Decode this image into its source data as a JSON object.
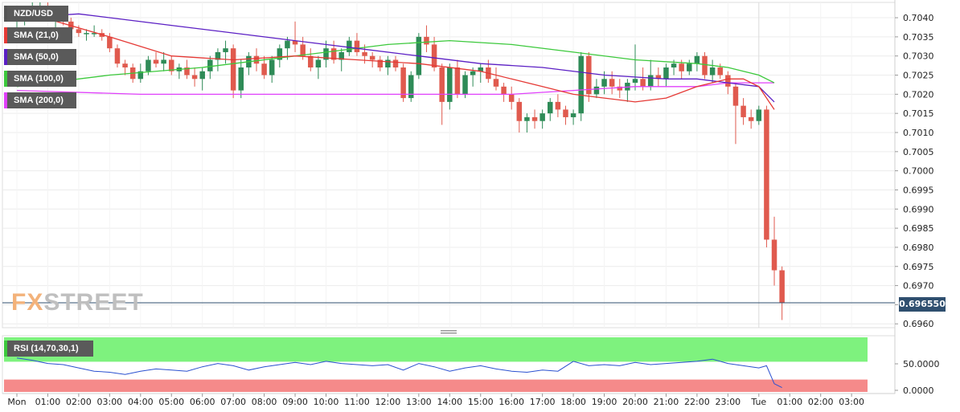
{
  "pair": "NZD/USD",
  "last_price": "0.696550",
  "legend": [
    {
      "label": "SMA (21,0)",
      "color": "#e53935"
    },
    {
      "label": "SMA (50,0)",
      "color": "#5b1fc4"
    },
    {
      "label": "SMA (100,0)",
      "color": "#3cc93c"
    },
    {
      "label": "SMA (200,0)",
      "color": "#e040fb"
    }
  ],
  "rsi_label": "RSI (14,70,30,1)",
  "watermark": {
    "prefix": "FX",
    "rest": "STREET"
  },
  "colors": {
    "up": "#2e8b57",
    "down": "#e05a4e",
    "rsi_line": "#2a50d0",
    "rsi_overbought": "#7ef27e",
    "rsi_oversold": "#f58a8a",
    "price_line": "#2f4f6f"
  },
  "chart_data": {
    "type": "candlestick",
    "title": "NZD/USD",
    "y_ticks": [
      "0.7040",
      "0.7035",
      "0.7030",
      "0.7025",
      "0.7020",
      "0.7015",
      "0.7010",
      "0.7005",
      "0.7000",
      "0.6995",
      "0.6990",
      "0.6985",
      "0.6980",
      "0.6975",
      "0.6970",
      "0.6965",
      "0.6960"
    ],
    "ylim": [
      0.6959,
      0.7044
    ],
    "x_ticks": [
      "Mon",
      "01:00",
      "02:00",
      "03:00",
      "04:00",
      "05:00",
      "06:00",
      "07:00",
      "08:00",
      "09:00",
      "10:00",
      "11:00",
      "12:00",
      "13:00",
      "14:00",
      "15:00",
      "16:00",
      "17:00",
      "18:00",
      "19:00",
      "20:00",
      "21:00",
      "22:00",
      "23:00",
      "Tue",
      "01:00",
      "02:00",
      "03:00"
    ],
    "x_unit": "hours since Mon 00:00",
    "candles": [
      [
        0.0,
        0.7039,
        0.7042,
        0.7036,
        0.704
      ],
      [
        0.25,
        0.704,
        0.7043,
        0.7038,
        0.7041
      ],
      [
        0.5,
        0.7041,
        0.7044,
        0.7039,
        0.7042
      ],
      [
        0.75,
        0.7042,
        0.7044,
        0.704,
        0.7043
      ],
      [
        1.0,
        0.7043,
        0.7044,
        0.7039,
        0.704
      ],
      [
        1.25,
        0.704,
        0.7042,
        0.7037,
        0.7041
      ],
      [
        1.5,
        0.7041,
        0.7043,
        0.7038,
        0.7039
      ],
      [
        1.75,
        0.7039,
        0.704,
        0.7036,
        0.7037
      ],
      [
        2.0,
        0.7037,
        0.7038,
        0.7035,
        0.7036
      ],
      [
        2.25,
        0.7036,
        0.7037,
        0.7034,
        0.7036
      ],
      [
        2.5,
        0.7036,
        0.7038,
        0.7035,
        0.7036
      ],
      [
        2.75,
        0.7036,
        0.7037,
        0.7034,
        0.7035
      ],
      [
        3.0,
        0.7035,
        0.7036,
        0.7031,
        0.7032
      ],
      [
        3.25,
        0.7032,
        0.7033,
        0.7027,
        0.7028
      ],
      [
        3.5,
        0.7028,
        0.7029,
        0.7025,
        0.7027
      ],
      [
        3.75,
        0.7027,
        0.7028,
        0.7023,
        0.7024
      ],
      [
        4.0,
        0.7024,
        0.7028,
        0.7023,
        0.7026
      ],
      [
        4.25,
        0.7026,
        0.703,
        0.7025,
        0.7029
      ],
      [
        4.5,
        0.7029,
        0.7031,
        0.7027,
        0.7028
      ],
      [
        4.75,
        0.7028,
        0.7031,
        0.7026,
        0.7029
      ],
      [
        5.0,
        0.7029,
        0.703,
        0.7025,
        0.7026
      ],
      [
        5.25,
        0.7026,
        0.7028,
        0.7024,
        0.7027
      ],
      [
        5.5,
        0.7027,
        0.7029,
        0.7024,
        0.7025
      ],
      [
        5.75,
        0.7025,
        0.7027,
        0.7022,
        0.7024
      ],
      [
        6.0,
        0.7024,
        0.7027,
        0.7021,
        0.7026
      ],
      [
        6.25,
        0.7026,
        0.703,
        0.7024,
        0.7029
      ],
      [
        6.5,
        0.7029,
        0.7032,
        0.7026,
        0.7031
      ],
      [
        6.75,
        0.7031,
        0.7034,
        0.7028,
        0.7032
      ],
      [
        7.0,
        0.7032,
        0.7033,
        0.7019,
        0.7021
      ],
      [
        7.25,
        0.7021,
        0.7029,
        0.7019,
        0.7027
      ],
      [
        7.5,
        0.7027,
        0.7031,
        0.7025,
        0.703
      ],
      [
        7.75,
        0.703,
        0.7032,
        0.7026,
        0.7028
      ],
      [
        8.0,
        0.7028,
        0.703,
        0.7024,
        0.7025
      ],
      [
        8.25,
        0.7025,
        0.703,
        0.7023,
        0.7029
      ],
      [
        8.5,
        0.7029,
        0.7033,
        0.7027,
        0.7032
      ],
      [
        8.75,
        0.7032,
        0.7035,
        0.7029,
        0.7034
      ],
      [
        9.0,
        0.7034,
        0.7039,
        0.7031,
        0.7033
      ],
      [
        9.25,
        0.7033,
        0.7035,
        0.7029,
        0.703
      ],
      [
        9.5,
        0.703,
        0.7032,
        0.7026,
        0.7027
      ],
      [
        9.75,
        0.7027,
        0.703,
        0.7024,
        0.7029
      ],
      [
        10.0,
        0.7029,
        0.7034,
        0.7027,
        0.7032
      ],
      [
        10.25,
        0.7032,
        0.7034,
        0.7028,
        0.7029
      ],
      [
        10.5,
        0.7029,
        0.7032,
        0.7026,
        0.7031
      ],
      [
        10.75,
        0.7031,
        0.7035,
        0.703,
        0.7034
      ],
      [
        11.0,
        0.7034,
        0.7036,
        0.703,
        0.7031
      ],
      [
        11.25,
        0.7031,
        0.7033,
        0.7028,
        0.703
      ],
      [
        11.5,
        0.703,
        0.7031,
        0.7027,
        0.7029
      ],
      [
        11.75,
        0.7029,
        0.703,
        0.7026,
        0.7027
      ],
      [
        12.0,
        0.7027,
        0.703,
        0.7025,
        0.7029
      ],
      [
        12.25,
        0.7029,
        0.703,
        0.7026,
        0.7027
      ],
      [
        12.5,
        0.7027,
        0.7028,
        0.7018,
        0.7019
      ],
      [
        12.75,
        0.7019,
        0.7026,
        0.7018,
        0.7025
      ],
      [
        13.0,
        0.7025,
        0.7036,
        0.7024,
        0.7035
      ],
      [
        13.25,
        0.7035,
        0.7038,
        0.7031,
        0.7033
      ],
      [
        13.5,
        0.7033,
        0.7035,
        0.7026,
        0.7027
      ],
      [
        13.75,
        0.7027,
        0.7028,
        0.7012,
        0.7018
      ],
      [
        14.0,
        0.7018,
        0.7028,
        0.7016,
        0.7027
      ],
      [
        14.25,
        0.7027,
        0.7029,
        0.7019,
        0.702
      ],
      [
        14.5,
        0.702,
        0.7026,
        0.7019,
        0.7025
      ],
      [
        14.75,
        0.7025,
        0.7027,
        0.7022,
        0.7026
      ],
      [
        15.0,
        0.7026,
        0.7028,
        0.7023,
        0.7027
      ],
      [
        15.25,
        0.7027,
        0.7029,
        0.7023,
        0.7024
      ],
      [
        15.5,
        0.7024,
        0.7027,
        0.7021,
        0.7022
      ],
      [
        15.75,
        0.7022,
        0.7023,
        0.7018,
        0.702
      ],
      [
        16.0,
        0.702,
        0.7022,
        0.7016,
        0.7018
      ],
      [
        16.25,
        0.7018,
        0.7019,
        0.701,
        0.7013
      ],
      [
        16.5,
        0.7013,
        0.7015,
        0.701,
        0.7014
      ],
      [
        16.75,
        0.7014,
        0.7016,
        0.7011,
        0.7013
      ],
      [
        17.0,
        0.7013,
        0.7016,
        0.7011,
        0.7015
      ],
      [
        17.25,
        0.7015,
        0.7019,
        0.7013,
        0.7018
      ],
      [
        17.5,
        0.7018,
        0.702,
        0.7014,
        0.7016
      ],
      [
        17.75,
        0.7016,
        0.7017,
        0.7012,
        0.7014
      ],
      [
        18.0,
        0.7014,
        0.7016,
        0.7012,
        0.7015
      ],
      [
        18.25,
        0.7015,
        0.7031,
        0.7013,
        0.703
      ],
      [
        18.5,
        0.703,
        0.7031,
        0.7018,
        0.702
      ],
      [
        18.75,
        0.702,
        0.7024,
        0.7019,
        0.7022
      ],
      [
        19.0,
        0.7022,
        0.7026,
        0.702,
        0.7024
      ],
      [
        19.25,
        0.7024,
        0.7026,
        0.702,
        0.7022
      ],
      [
        19.5,
        0.7022,
        0.7024,
        0.7019,
        0.7021
      ],
      [
        19.75,
        0.7021,
        0.7024,
        0.7018,
        0.7023
      ],
      [
        20.0,
        0.7023,
        0.7033,
        0.7021,
        0.7024
      ],
      [
        20.25,
        0.7024,
        0.7027,
        0.7021,
        0.7022
      ],
      [
        20.5,
        0.7022,
        0.7029,
        0.7021,
        0.7025
      ],
      [
        20.75,
        0.7025,
        0.7027,
        0.7022,
        0.7024
      ],
      [
        21.0,
        0.7024,
        0.7028,
        0.7022,
        0.7027
      ],
      [
        21.25,
        0.7027,
        0.7029,
        0.7025,
        0.7028
      ],
      [
        21.5,
        0.7028,
        0.7029,
        0.7024,
        0.7026
      ],
      [
        21.75,
        0.7026,
        0.7029,
        0.7025,
        0.7028
      ],
      [
        22.0,
        0.7028,
        0.7031,
        0.7026,
        0.703
      ],
      [
        22.25,
        0.703,
        0.7031,
        0.7024,
        0.7025
      ],
      [
        22.5,
        0.7025,
        0.7029,
        0.7023,
        0.7027
      ],
      [
        22.75,
        0.7027,
        0.7028,
        0.7024,
        0.7025
      ],
      [
        23.0,
        0.7025,
        0.7026,
        0.702,
        0.7022
      ],
      [
        23.25,
        0.7022,
        0.7023,
        0.7007,
        0.7017
      ],
      [
        23.5,
        0.7017,
        0.7019,
        0.7012,
        0.7014
      ],
      [
        23.75,
        0.7014,
        0.7016,
        0.7011,
        0.7013
      ],
      [
        24.0,
        0.7013,
        0.7017,
        0.7012,
        0.7016
      ],
      [
        24.25,
        0.7016,
        0.7017,
        0.698,
        0.6982
      ],
      [
        24.5,
        0.6982,
        0.6988,
        0.697,
        0.6974
      ],
      [
        24.75,
        0.6974,
        0.6975,
        0.6961,
        0.69655
      ]
    ],
    "sma21": [
      [
        0,
        0.7042
      ],
      [
        3,
        0.7035
      ],
      [
        5,
        0.703
      ],
      [
        7,
        0.7029
      ],
      [
        9,
        0.703
      ],
      [
        11,
        0.7029
      ],
      [
        13,
        0.7028
      ],
      [
        15,
        0.7026
      ],
      [
        16,
        0.7024
      ],
      [
        17,
        0.7022
      ],
      [
        18,
        0.702
      ],
      [
        19,
        0.7019
      ],
      [
        20,
        0.7018
      ],
      [
        21,
        0.7019
      ],
      [
        22,
        0.7022
      ],
      [
        23,
        0.7024
      ],
      [
        23.5,
        0.7024
      ],
      [
        24,
        0.7022
      ],
      [
        24.5,
        0.7016
      ]
    ],
    "sma50": [
      [
        0,
        0.704
      ],
      [
        2,
        0.7041
      ],
      [
        5,
        0.7038
      ],
      [
        8,
        0.7035
      ],
      [
        11,
        0.7032
      ],
      [
        13,
        0.703
      ],
      [
        15,
        0.7028
      ],
      [
        17,
        0.7027
      ],
      [
        19,
        0.7025
      ],
      [
        21,
        0.7024
      ],
      [
        22,
        0.7024
      ],
      [
        23,
        0.7023
      ],
      [
        24,
        0.7022
      ],
      [
        24.5,
        0.7018
      ]
    ],
    "sma100": [
      [
        0,
        0.7022
      ],
      [
        3,
        0.7025
      ],
      [
        6,
        0.7027
      ],
      [
        9,
        0.703
      ],
      [
        12,
        0.7033
      ],
      [
        14,
        0.7034
      ],
      [
        16,
        0.7033
      ],
      [
        18,
        0.7031
      ],
      [
        20,
        0.7029
      ],
      [
        22,
        0.7028
      ],
      [
        23,
        0.7027
      ],
      [
        24,
        0.7025
      ],
      [
        24.5,
        0.7023
      ]
    ],
    "sma200": [
      [
        0,
        0.7021
      ],
      [
        4,
        0.702
      ],
      [
        8,
        0.702
      ],
      [
        12,
        0.702
      ],
      [
        16,
        0.702
      ],
      [
        18,
        0.7021
      ],
      [
        20,
        0.7022
      ],
      [
        22,
        0.7022
      ],
      [
        23,
        0.7023
      ],
      [
        24,
        0.7023
      ],
      [
        24.5,
        0.7023
      ]
    ],
    "rsi": {
      "y_ticks": [
        "50.0000",
        "0.0000"
      ],
      "ylim": [
        0,
        100
      ],
      "overbought": 70,
      "oversold": 30,
      "values": [
        [
          0,
          62
        ],
        [
          0.5,
          58
        ],
        [
          1,
          52
        ],
        [
          1.5,
          50
        ],
        [
          2,
          44
        ],
        [
          2.5,
          38
        ],
        [
          3,
          36
        ],
        [
          3.5,
          32
        ],
        [
          4,
          38
        ],
        [
          4.5,
          42
        ],
        [
          5,
          40
        ],
        [
          5.5,
          38
        ],
        [
          6,
          46
        ],
        [
          6.5,
          52
        ],
        [
          7,
          48
        ],
        [
          7.5,
          40
        ],
        [
          8,
          46
        ],
        [
          8.5,
          50
        ],
        [
          9,
          54
        ],
        [
          9.5,
          50
        ],
        [
          10,
          56
        ],
        [
          10.5,
          52
        ],
        [
          11,
          50
        ],
        [
          11.5,
          48
        ],
        [
          12,
          50
        ],
        [
          12.5,
          40
        ],
        [
          13,
          52
        ],
        [
          13.5,
          46
        ],
        [
          14,
          38
        ],
        [
          14.5,
          44
        ],
        [
          15,
          48
        ],
        [
          15.5,
          42
        ],
        [
          16,
          38
        ],
        [
          16.5,
          36
        ],
        [
          17,
          40
        ],
        [
          17.5,
          38
        ],
        [
          18,
          56
        ],
        [
          18.5,
          48
        ],
        [
          19,
          50
        ],
        [
          19.5,
          48
        ],
        [
          20,
          54
        ],
        [
          20.5,
          50
        ],
        [
          21,
          52
        ],
        [
          21.5,
          54
        ],
        [
          22,
          56
        ],
        [
          22.5,
          60
        ],
        [
          23,
          52
        ],
        [
          23.5,
          48
        ],
        [
          24,
          44
        ],
        [
          24.25,
          48
        ],
        [
          24.5,
          15
        ],
        [
          24.75,
          8
        ]
      ]
    }
  }
}
